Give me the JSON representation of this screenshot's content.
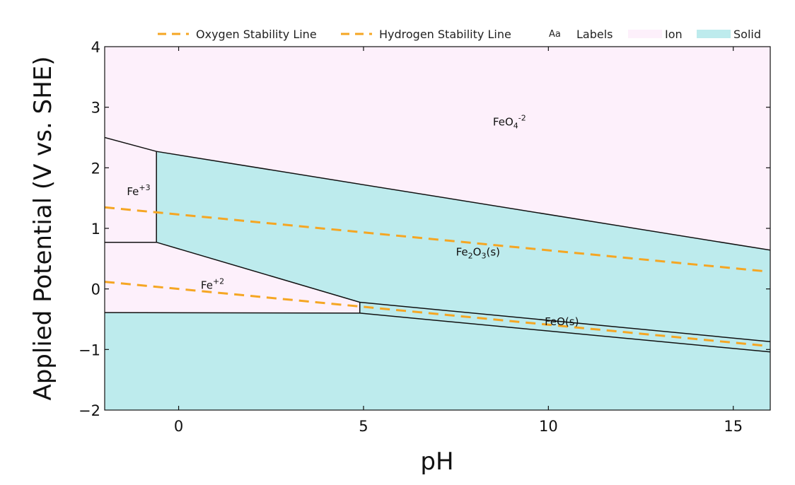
{
  "chart_data": {
    "type": "area",
    "title": "",
    "xlabel": "pH",
    "ylabel": "Applied Potential (V vs. SHE)",
    "xlim": [
      -2,
      16
    ],
    "ylim": [
      -2,
      4
    ],
    "x_ticks": [
      0,
      5,
      10,
      15
    ],
    "y_ticks": [
      -2,
      -1,
      0,
      1,
      2,
      3,
      4
    ],
    "x_tick_labels": [
      "0",
      "5",
      "10",
      "15"
    ],
    "y_tick_labels": [
      "−2",
      "−1",
      "0",
      "1",
      "2",
      "3",
      "4"
    ],
    "grid": false,
    "legend_position": "top-right",
    "legend": [
      {
        "label": "Oxygen Stability Line",
        "kind": "dashed-line",
        "color": "#f5a623"
      },
      {
        "label": "Hydrogen Stability Line",
        "kind": "dashed-line",
        "color": "#f5a623"
      },
      {
        "label": "Labels",
        "kind": "text",
        "symbol": "Aa"
      },
      {
        "label": "Ion",
        "kind": "fill",
        "color": "#fdf0fb"
      },
      {
        "label": "Solid",
        "kind": "fill",
        "color": "#bdebed"
      }
    ],
    "colors": {
      "ion": "#fdf0fb",
      "solid": "#bdebed",
      "stability": "#f5a623",
      "boundary": "#111111"
    },
    "regions": [
      {
        "name": "FeO4-2",
        "phase": "ion",
        "label": {
          "base": "FeO",
          "parts": [
            {
              "t": "4",
              "type": "sub"
            },
            {
              "t": "-2",
              "type": "sup"
            }
          ]
        },
        "label_pos": [
          8.5,
          2.7
        ],
        "polygon": [
          [
            -2,
            4
          ],
          [
            16,
            4
          ],
          [
            16,
            0.64
          ],
          [
            -0.6,
            2.27
          ],
          [
            -2,
            2.5
          ]
        ]
      },
      {
        "name": "Fe+3",
        "phase": "ion",
        "label": {
          "base": "Fe",
          "parts": [
            {
              "t": "+3",
              "type": "sup"
            }
          ]
        },
        "label_pos": [
          -1.4,
          1.55
        ],
        "polygon": [
          [
            -2,
            2.5
          ],
          [
            -0.6,
            2.27
          ],
          [
            -0.6,
            0.77
          ],
          [
            -2,
            0.77
          ]
        ]
      },
      {
        "name": "Fe2O3(s)",
        "phase": "solid",
        "label": {
          "base": "Fe",
          "parts": [
            {
              "t": "2",
              "type": "sub"
            },
            {
              "t": "O",
              "type": "norm"
            },
            {
              "t": "3",
              "type": "sub"
            },
            {
              "t": "(s)",
              "type": "norm"
            }
          ]
        },
        "label_pos": [
          7.5,
          0.55
        ],
        "polygon": [
          [
            -0.6,
            2.27
          ],
          [
            16,
            0.64
          ],
          [
            16,
            -0.87
          ],
          [
            4.9,
            -0.22
          ],
          [
            -0.6,
            0.77
          ]
        ]
      },
      {
        "name": "Fe+2",
        "phase": "ion",
        "label": {
          "base": "Fe",
          "parts": [
            {
              "t": "+2",
              "type": "sup"
            }
          ]
        },
        "label_pos": [
          0.6,
          0.0
        ],
        "polygon": [
          [
            -2,
            0.77
          ],
          [
            -0.6,
            0.77
          ],
          [
            4.9,
            -0.22
          ],
          [
            4.9,
            -0.4
          ],
          [
            -2,
            -0.39
          ]
        ]
      },
      {
        "name": "FeO(s)",
        "phase": "solid",
        "label": {
          "base": "FeO(s)",
          "parts": []
        },
        "label_pos": [
          9.9,
          -0.6
        ],
        "polygon": [
          [
            4.9,
            -0.22
          ],
          [
            16,
            -0.87
          ],
          [
            16,
            -1.04
          ],
          [
            4.9,
            -0.4
          ]
        ]
      },
      {
        "name": "Fe(s)",
        "phase": "solid",
        "label": null,
        "polygon": [
          [
            -2,
            -0.39
          ],
          [
            4.9,
            -0.4
          ],
          [
            16,
            -1.04
          ],
          [
            16,
            -2
          ],
          [
            -2,
            -2
          ]
        ]
      }
    ],
    "boundaries": [
      [
        [
          -2,
          2.5
        ],
        [
          -0.6,
          2.27
        ],
        [
          16,
          0.64
        ]
      ],
      [
        [
          -0.6,
          2.27
        ],
        [
          -0.6,
          0.77
        ]
      ],
      [
        [
          -2,
          0.77
        ],
        [
          -0.6,
          0.77
        ],
        [
          4.9,
          -0.22
        ],
        [
          16,
          -0.87
        ]
      ],
      [
        [
          4.9,
          -0.22
        ],
        [
          4.9,
          -0.4
        ]
      ],
      [
        [
          -2,
          -0.39
        ],
        [
          4.9,
          -0.4
        ],
        [
          16,
          -1.04
        ]
      ]
    ],
    "stability_lines": [
      {
        "name": "Oxygen Stability Line",
        "x": [
          -2,
          15.8
        ],
        "y": [
          1.347,
          0.295
        ]
      },
      {
        "name": "Hydrogen Stability Line",
        "x": [
          -2,
          15.8
        ],
        "y": [
          0.118,
          -0.934
        ]
      }
    ]
  }
}
